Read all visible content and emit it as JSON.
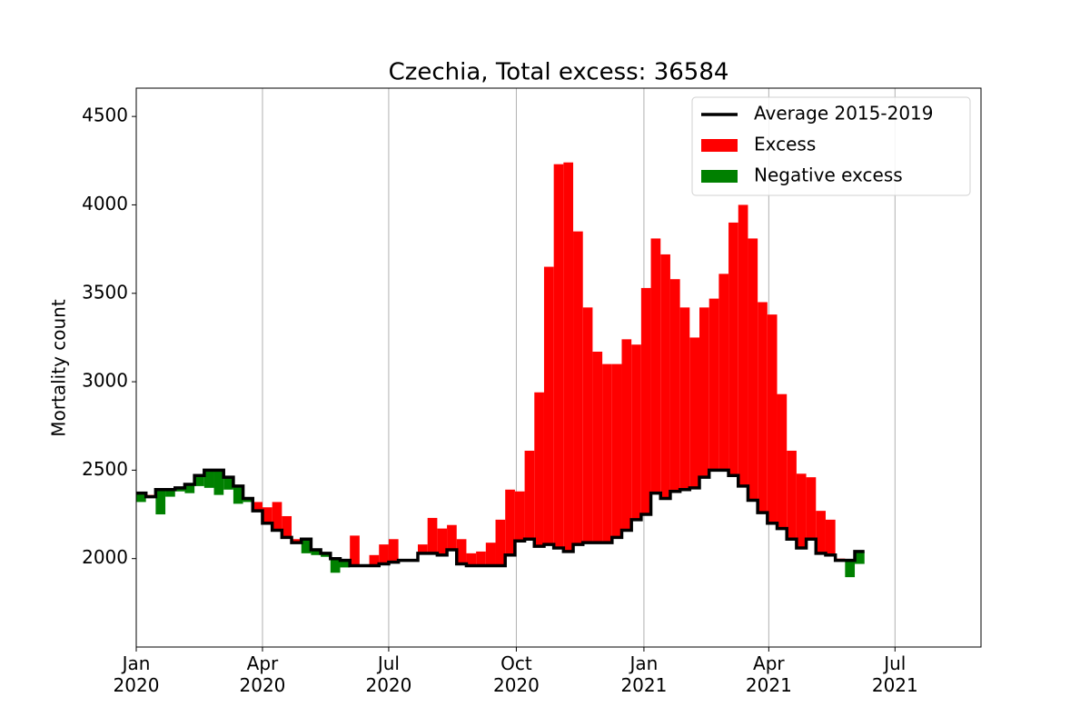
{
  "chart_data": {
    "type": "excess-step",
    "title": "Czechia, Total excess: 36584",
    "y_label": "Mortality count",
    "x": [
      "2020-01-01",
      "2020-01-08",
      "2020-01-15",
      "2020-01-22",
      "2020-01-29",
      "2020-02-05",
      "2020-02-12",
      "2020-02-19",
      "2020-02-26",
      "2020-03-04",
      "2020-03-11",
      "2020-03-18",
      "2020-03-25",
      "2020-04-01",
      "2020-04-08",
      "2020-04-15",
      "2020-04-22",
      "2020-04-29",
      "2020-05-06",
      "2020-05-13",
      "2020-05-20",
      "2020-05-27",
      "2020-06-03",
      "2020-06-10",
      "2020-06-17",
      "2020-06-24",
      "2020-07-01",
      "2020-07-08",
      "2020-07-15",
      "2020-07-22",
      "2020-07-29",
      "2020-08-05",
      "2020-08-12",
      "2020-08-19",
      "2020-08-26",
      "2020-09-02",
      "2020-09-09",
      "2020-09-16",
      "2020-09-23",
      "2020-09-30",
      "2020-10-07",
      "2020-10-14",
      "2020-10-21",
      "2020-10-28",
      "2020-11-04",
      "2020-11-11",
      "2020-11-18",
      "2020-11-25",
      "2020-12-02",
      "2020-12-09",
      "2020-12-16",
      "2020-12-23",
      "2020-12-30",
      "2021-01-06",
      "2021-01-13",
      "2021-01-20",
      "2021-01-27",
      "2021-02-03",
      "2021-02-10",
      "2021-02-17",
      "2021-02-24",
      "2021-03-03",
      "2021-03-10",
      "2021-03-17",
      "2021-03-24",
      "2021-03-31",
      "2021-04-07",
      "2021-04-14",
      "2021-04-21",
      "2021-04-28",
      "2021-05-05",
      "2021-05-12",
      "2021-05-19",
      "2021-05-26",
      "2021-06-02"
    ],
    "values": [
      2320,
      2360,
      2250,
      2350,
      2380,
      2370,
      2410,
      2400,
      2360,
      2390,
      2310,
      2320,
      2320,
      2290,
      2320,
      2240,
      2110,
      2030,
      2020,
      2010,
      1920,
      1950,
      2130,
      1960,
      2020,
      2080,
      2110,
      1990,
      1990,
      2080,
      2230,
      2170,
      2190,
      2110,
      2030,
      2040,
      2090,
      2220,
      2390,
      2380,
      2610,
      2940,
      3650,
      4230,
      4240,
      3850,
      3420,
      3170,
      3100,
      3100,
      3240,
      3210,
      3530,
      3810,
      3720,
      3580,
      3420,
      3250,
      3420,
      3470,
      3610,
      3900,
      4000,
      3810,
      3450,
      3380,
      2930,
      2610,
      2480,
      2460,
      2270,
      2220,
      2000,
      1895,
      1970
    ],
    "series": [
      {
        "name": "Average 2015-2019",
        "color": "#000000",
        "values": [
          2370,
          2350,
          2390,
          2390,
          2400,
          2420,
          2470,
          2500,
          2500,
          2460,
          2410,
          2340,
          2270,
          2200,
          2160,
          2120,
          2090,
          2110,
          2050,
          2030,
          2000,
          1990,
          1960,
          1960,
          1960,
          1970,
          1980,
          1990,
          1990,
          2030,
          2030,
          2020,
          2050,
          1970,
          1960,
          1960,
          1960,
          1960,
          2020,
          2100,
          2110,
          2070,
          2080,
          2060,
          2040,
          2080,
          2090,
          2090,
          2090,
          2120,
          2160,
          2220,
          2250,
          2370,
          2340,
          2380,
          2390,
          2400,
          2460,
          2500,
          2500,
          2470,
          2410,
          2330,
          2260,
          2200,
          2170,
          2110,
          2060,
          2110,
          2030,
          2020,
          1990,
          1990,
          2040
        ]
      },
      {
        "name": "Excess",
        "color": "#ff0000"
      },
      {
        "name": "Negative excess",
        "color": "#008000"
      }
    ],
    "xlim": [
      "2020-01",
      "2021-09"
    ],
    "xticks": [
      {
        "value": "2020-01",
        "label": "Jan\n2020"
      },
      {
        "value": "2020-04",
        "label": "Apr\n2020"
      },
      {
        "value": "2020-07",
        "label": "Jul\n2020"
      },
      {
        "value": "2020-10",
        "label": "Oct\n2020"
      },
      {
        "value": "2021-01",
        "label": "Jan\n2021"
      },
      {
        "value": "2021-04",
        "label": "Apr\n2021"
      },
      {
        "value": "2021-07",
        "label": "Jul\n2021"
      }
    ],
    "ylim": [
      1500,
      4660
    ],
    "yticks": [
      2000,
      2500,
      3000,
      3500,
      4000,
      4500
    ],
    "grid": "x",
    "legend": "upper right"
  }
}
